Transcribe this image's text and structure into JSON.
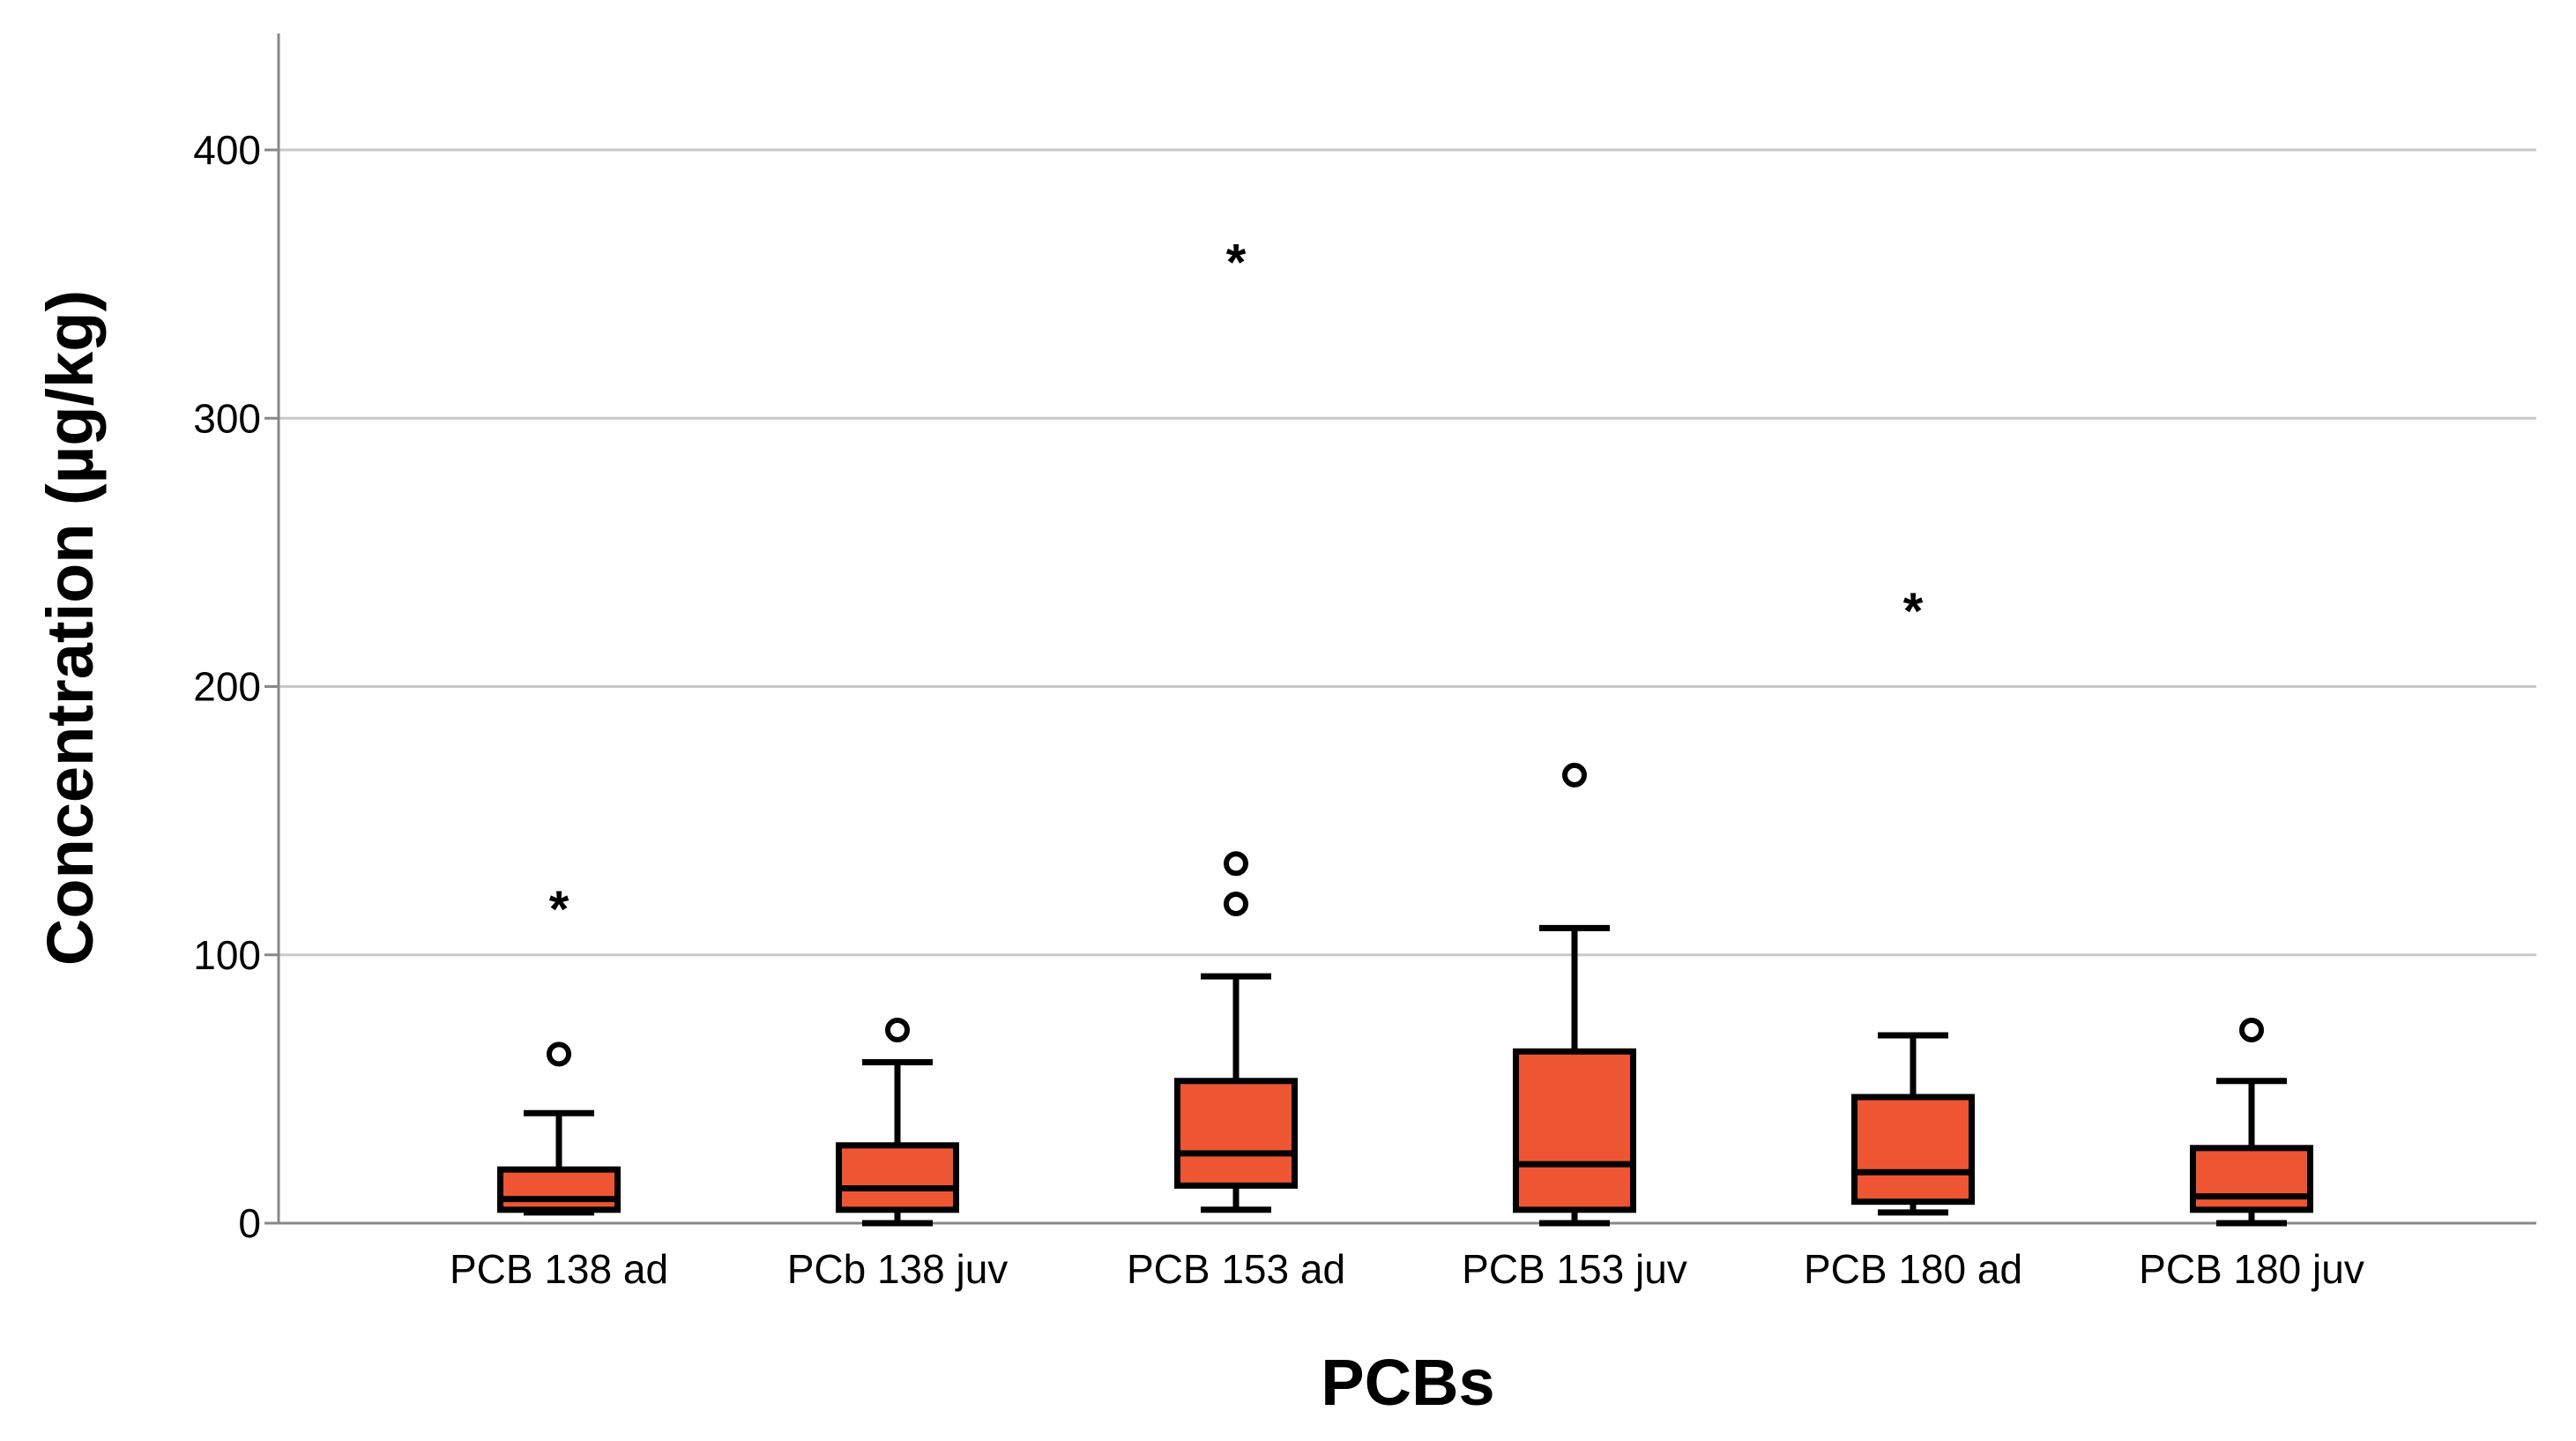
{
  "chart_data": {
    "type": "boxplot",
    "title": "",
    "xlabel": "PCBs",
    "ylabel": "Concentration (µg/kg)",
    "ylim": [
      0,
      440
    ],
    "yticks": [
      0,
      100,
      200,
      300,
      400
    ],
    "grid": true,
    "colors": {
      "box_fill": "#EE5533",
      "stroke": "#000000",
      "grid": "#c8c8c8",
      "axis": "#888888"
    },
    "categories": [
      "PCB 138 ad",
      "PCb 138 juv",
      "PCB 153 ad",
      "PCB 153 juv",
      "PCB 180 ad",
      "PCB 180 juv"
    ],
    "boxes": [
      {
        "whisker_low": 4,
        "q1": 5,
        "median": 9,
        "q3": 20,
        "whisker_high": 41,
        "outliers": [
          63
        ],
        "extremes": [
          119
        ]
      },
      {
        "whisker_low": 0,
        "q1": 5,
        "median": 13,
        "q3": 29,
        "whisker_high": 60,
        "outliers": [
          72
        ],
        "extremes": []
      },
      {
        "whisker_low": 5,
        "q1": 14,
        "median": 26,
        "q3": 53,
        "whisker_high": 92,
        "outliers": [
          119,
          134
        ],
        "extremes": [
          360
        ]
      },
      {
        "whisker_low": 0,
        "q1": 5,
        "median": 22,
        "q3": 64,
        "whisker_high": 110,
        "outliers": [
          167
        ],
        "extremes": []
      },
      {
        "whisker_low": 4,
        "q1": 8,
        "median": 19,
        "q3": 47,
        "whisker_high": 70,
        "outliers": [],
        "extremes": [
          230
        ]
      },
      {
        "whisker_low": 0,
        "q1": 5,
        "median": 10,
        "q3": 28,
        "whisker_high": 53,
        "outliers": [
          72
        ],
        "extremes": []
      }
    ]
  }
}
